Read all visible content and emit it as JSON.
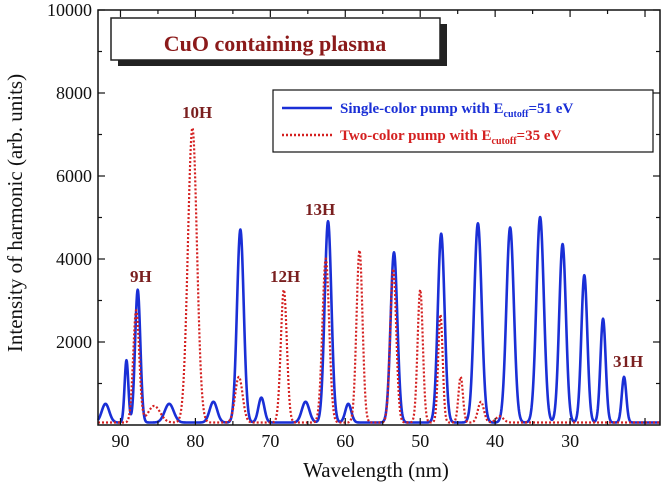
{
  "chart_data": {
    "type": "line",
    "title": "CuO containing plasma",
    "xlabel": "Wavelength (nm)",
    "ylabel": "Intensity of harmonic (arb. units)",
    "xlim": [
      93,
      18
    ],
    "ylim": [
      0,
      10000
    ],
    "x_ticks": [
      90,
      80,
      70,
      60,
      50,
      40,
      30
    ],
    "y_ticks": [
      2000,
      4000,
      6000,
      8000,
      10000
    ],
    "grid": false,
    "legend_position": "top-right",
    "series": [
      {
        "name": "Single-color pump with E",
        "name_sub": "cutoff",
        "name_suffix": "=51 eV",
        "color": "#1a2fd6",
        "style": "solid",
        "peaks": [
          [
            92.0,
            450,
            0.5
          ],
          [
            89.2,
            1500,
            0.25
          ],
          [
            87.7,
            3200,
            0.35
          ],
          [
            83.5,
            450,
            0.6
          ],
          [
            77.6,
            500,
            0.5
          ],
          [
            74.0,
            4650,
            0.45
          ],
          [
            71.2,
            600,
            0.4
          ],
          [
            65.3,
            500,
            0.5
          ],
          [
            62.3,
            4850,
            0.45
          ],
          [
            59.6,
            450,
            0.4
          ],
          [
            53.5,
            4100,
            0.45
          ],
          [
            47.2,
            4550,
            0.45
          ],
          [
            42.3,
            4800,
            0.5
          ],
          [
            38.0,
            4700,
            0.5
          ],
          [
            34.0,
            4950,
            0.5
          ],
          [
            31.0,
            4300,
            0.45
          ],
          [
            28.1,
            3550,
            0.4
          ],
          [
            25.6,
            2500,
            0.35
          ],
          [
            22.8,
            1100,
            0.3
          ]
        ]
      },
      {
        "name": "Two-color pump with E",
        "name_sub": "cutoff",
        "name_suffix": "=35 eV",
        "color": "#d42020",
        "style": "dotted",
        "peaks": [
          [
            87.9,
            2700,
            0.4
          ],
          [
            85.5,
            400,
            0.8
          ],
          [
            80.4,
            7100,
            0.6
          ],
          [
            74.2,
            1100,
            0.5
          ],
          [
            68.2,
            3200,
            0.4
          ],
          [
            62.6,
            3950,
            0.45
          ],
          [
            58.1,
            4150,
            0.4
          ],
          [
            53.6,
            3700,
            0.4
          ],
          [
            50.0,
            3200,
            0.35
          ],
          [
            47.3,
            2600,
            0.3
          ],
          [
            44.6,
            1100,
            0.3
          ],
          [
            41.9,
            500,
            0.4
          ],
          [
            39.4,
            150,
            0.5
          ]
        ]
      }
    ],
    "annotations": [
      "9H",
      "10H",
      "12H",
      "13H",
      "31H"
    ]
  }
}
